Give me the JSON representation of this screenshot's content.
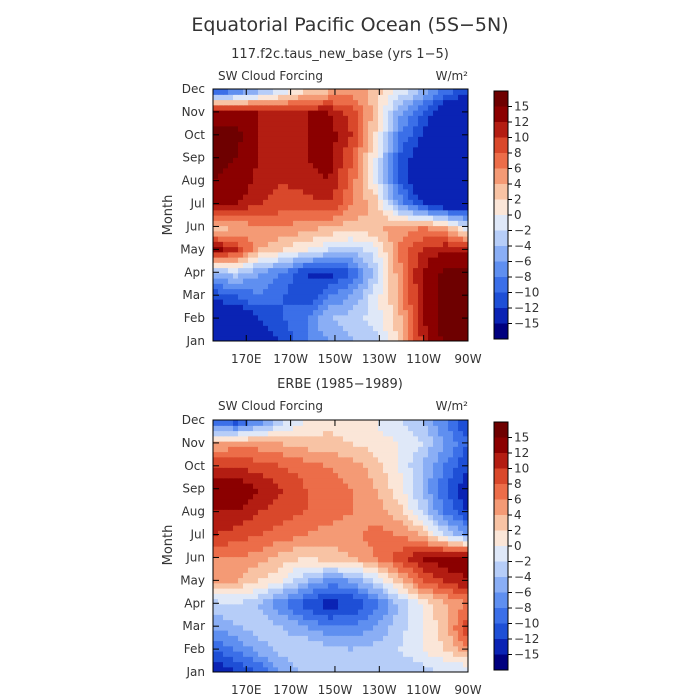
{
  "figure": {
    "title": "Equatorial Pacific Ocean (5S−5N)"
  },
  "colors": {
    "levels": [
      -15,
      -12,
      -10,
      -8,
      -6,
      -4,
      -2,
      0,
      2,
      4,
      6,
      8,
      10,
      12,
      15
    ],
    "palette": [
      "#00007f",
      "#0a23b4",
      "#1e4fd6",
      "#3b6fe8",
      "#5f8ff0",
      "#8aaef5",
      "#b6cdf8",
      "#dfe8f8",
      "#fbe6d8",
      "#f8c3a4",
      "#f49a75",
      "#ec6d49",
      "#d9482b",
      "#b31d12",
      "#8b0000",
      "#6e0000"
    ]
  },
  "chart_data": [
    {
      "type": "heatmap",
      "title": "117.f2c.taus_new_base (yrs 1−5)",
      "variable": "SW Cloud Forcing",
      "units": "W/m²",
      "ylabel": "Month",
      "x_ticks": [
        "170E",
        "170W",
        "150W",
        "130W",
        "110W",
        "90W"
      ],
      "y_ticks": [
        "Jan",
        "Feb",
        "Mar",
        "Apr",
        "May",
        "Jun",
        "Jul",
        "Aug",
        "Sep",
        "Oct",
        "Nov",
        "Dec"
      ],
      "colorbar_labels": [
        "15",
        "12",
        "10",
        "8",
        "6",
        "4",
        "2",
        "0",
        "−2",
        "−4",
        "−6",
        "−8",
        "−10",
        "−12",
        "−15"
      ],
      "x_range": [
        155,
        270
      ],
      "grid": [
        [
          -15,
          -15,
          -14,
          -12,
          -8,
          -6,
          -4,
          -3,
          2,
          10,
          16,
          16
        ],
        [
          -14,
          -15,
          -12,
          -10,
          -8,
          -4,
          -3,
          -1,
          3,
          12,
          16,
          16
        ],
        [
          -12,
          -10,
          -8,
          -10,
          -12,
          -8,
          -6,
          -1,
          4,
          12,
          16,
          16
        ],
        [
          -4,
          -3,
          -6,
          -8,
          -12,
          -13,
          -10,
          -3,
          5,
          12,
          16,
          16
        ],
        [
          14,
          10,
          4,
          2,
          0,
          -2,
          -3,
          -1,
          6,
          10,
          12,
          12
        ],
        [
          2,
          4,
          6,
          6,
          5,
          4,
          3,
          4,
          5,
          6,
          4,
          -2
        ],
        [
          14,
          12,
          10,
          9,
          9,
          10,
          6,
          3,
          -6,
          -12,
          -15,
          -15
        ],
        [
          15,
          14,
          11,
          10,
          11,
          12,
          7,
          0,
          -10,
          -15,
          -15,
          -15
        ],
        [
          16,
          15,
          12,
          10,
          12,
          13,
          8,
          0,
          -10,
          -14,
          -15,
          -15
        ],
        [
          16,
          16,
          12,
          10,
          12,
          13,
          10,
          2,
          -8,
          -12,
          -15,
          -15
        ],
        [
          14,
          14,
          12,
          11,
          12,
          12,
          9,
          3,
          -5,
          -10,
          -15,
          -15
        ],
        [
          -12,
          -10,
          -6,
          -2,
          1,
          3,
          5,
          3,
          0,
          -4,
          -8,
          -12
        ]
      ]
    },
    {
      "type": "heatmap",
      "title": "ERBE (1985−1989)",
      "variable": "SW Cloud Forcing",
      "units": "W/m²",
      "ylabel": "Month",
      "x_ticks": [
        "170E",
        "170W",
        "150W",
        "130W",
        "110W",
        "90W"
      ],
      "y_ticks": [
        "Jan",
        "Feb",
        "Mar",
        "Apr",
        "May",
        "Jun",
        "Jul",
        "Aug",
        "Sep",
        "Oct",
        "Nov",
        "Dec"
      ],
      "colorbar_labels": [
        "15",
        "12",
        "10",
        "8",
        "6",
        "4",
        "2",
        "0",
        "−2",
        "−4",
        "−6",
        "−8",
        "−10",
        "−12",
        "−15"
      ],
      "x_range": [
        155,
        270
      ],
      "grid": [
        [
          -15,
          -12,
          -10,
          -6,
          -3,
          -2,
          -2,
          -3,
          -4,
          -3,
          -2,
          -3
        ],
        [
          -10,
          -8,
          -5,
          -3,
          -2,
          -3,
          -4,
          -3,
          -2,
          0,
          2,
          6
        ],
        [
          -6,
          -4,
          -3,
          -4,
          -6,
          -8,
          -8,
          -6,
          -3,
          0,
          3,
          10
        ],
        [
          -3,
          -2,
          -4,
          -8,
          -11,
          -13,
          -12,
          -9,
          -4,
          0,
          4,
          6
        ],
        [
          6,
          4,
          2,
          0,
          -4,
          -7,
          -6,
          -2,
          3,
          8,
          10,
          12
        ],
        [
          6,
          6,
          5,
          3,
          2,
          3,
          4,
          6,
          9,
          12,
          14,
          14
        ],
        [
          10,
          9,
          8,
          7,
          6,
          5,
          5,
          7,
          6,
          4,
          -2,
          -6
        ],
        [
          12,
          12,
          10,
          9,
          8,
          7,
          6,
          5,
          3,
          -2,
          -8,
          -12
        ],
        [
          14,
          14,
          12,
          10,
          8,
          7,
          6,
          4,
          1,
          -4,
          -10,
          -14
        ],
        [
          10,
          10,
          9,
          8,
          7,
          6,
          5,
          3,
          0,
          -4,
          -8,
          -12
        ],
        [
          4,
          5,
          5,
          4,
          3,
          3,
          2,
          1,
          0,
          -2,
          -6,
          -10
        ],
        [
          -10,
          -12,
          -8,
          -3,
          0,
          1,
          0,
          0,
          -2,
          -4,
          -8,
          -12
        ]
      ]
    }
  ]
}
